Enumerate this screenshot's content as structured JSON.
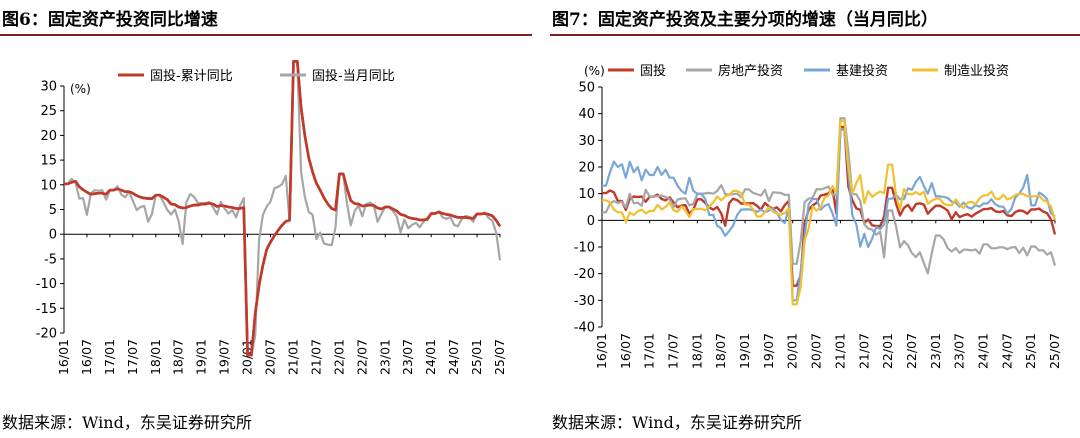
{
  "left": {
    "title": "图6：固定资产投资同比增速",
    "source": "数据来源：Wind，东吴证券研究所",
    "chart_data": {
      "type": "line",
      "title": "",
      "ylabel": "(%)",
      "xlabel": "",
      "ylim": [
        -20,
        30
      ],
      "yticks": [
        -20,
        -15,
        -10,
        -5,
        0,
        5,
        10,
        15,
        20,
        25,
        30
      ],
      "xticks": [
        "16/01",
        "16/07",
        "17/01",
        "17/07",
        "18/01",
        "18/07",
        "19/01",
        "19/07",
        "20/01",
        "20/07",
        "21/01",
        "21/07",
        "22/01",
        "22/07",
        "23/01",
        "23/07",
        "24/01",
        "24/07",
        "25/01",
        "25/07"
      ],
      "x_start": "2016-01",
      "legend": "top",
      "colors": {
        "series1": "#c0392b",
        "series2": "#a6a6a6"
      },
      "series": [
        {
          "name": "固投-累计同比",
          "values": [
            10.2,
            10.2,
            10.5,
            10.7,
            9.6,
            9.0,
            8.5,
            8.1,
            8.2,
            8.3,
            8.3,
            8.1,
            8.9,
            8.9,
            9.2,
            8.9,
            8.6,
            8.6,
            8.3,
            7.8,
            7.5,
            7.3,
            7.2,
            7.2,
            7.9,
            7.9,
            7.5,
            7.0,
            6.1,
            6.0,
            5.5,
            5.3,
            5.4,
            5.7,
            5.9,
            5.9,
            6.1,
            6.1,
            6.3,
            6.1,
            5.6,
            5.8,
            5.7,
            5.5,
            5.4,
            5.2,
            5.2,
            5.4,
            -24.5,
            -24.5,
            -16.1,
            -10.3,
            -6.3,
            -3.1,
            -1.6,
            -0.3,
            0.8,
            1.8,
            2.6,
            2.9,
            35.0,
            35.0,
            25.6,
            19.9,
            15.4,
            12.6,
            10.3,
            8.9,
            7.3,
            6.1,
            5.2,
            4.9,
            12.2,
            12.2,
            9.3,
            6.8,
            6.2,
            6.1,
            5.7,
            5.8,
            5.9,
            5.8,
            5.3,
            5.1,
            5.5,
            5.5,
            5.1,
            4.7,
            4.0,
            3.8,
            3.4,
            3.2,
            3.1,
            2.9,
            2.9,
            3.0,
            4.2,
            4.2,
            4.5,
            4.2,
            4.0,
            3.9,
            3.6,
            3.4,
            3.4,
            3.4,
            3.3,
            3.2,
            4.1,
            4.1,
            4.2,
            4.0,
            3.7,
            2.8,
            1.6
          ]
        },
        {
          "name": "固投-当月同比",
          "values": [
            10.2,
            10.2,
            11.2,
            10.5,
            7.2,
            7.3,
            3.9,
            8.2,
            8.9,
            8.8,
            8.9,
            7.0,
            8.9,
            8.9,
            9.7,
            8.0,
            7.5,
            8.6,
            6.8,
            4.9,
            5.5,
            5.7,
            2.5,
            4.1,
            7.9,
            7.9,
            6.5,
            4.9,
            4.0,
            5.0,
            2.6,
            -2.0,
            6.5,
            8.1,
            7.6,
            6.3,
            6.3,
            6.3,
            6.5,
            5.4,
            4.0,
            6.5,
            5.2,
            4.2,
            4.9,
            3.4,
            5.7,
            7.3,
            -24.5,
            -24.5,
            -20.5,
            -1.1,
            3.9,
            5.6,
            6.6,
            9.3,
            9.6,
            10.1,
            11.8,
            2.6,
            35.0,
            35.0,
            12.6,
            7.5,
            4.5,
            3.9,
            -1.0,
            0.3,
            -1.9,
            -2.1,
            -2.2,
            1.4,
            12.2,
            12.2,
            6.2,
            1.8,
            4.7,
            5.8,
            3.6,
            6.1,
            6.4,
            5.9,
            2.5,
            4.1,
            5.5,
            5.5,
            4.7,
            3.6,
            0.4,
            3.0,
            1.2,
            1.9,
            2.3,
            1.4,
            2.5,
            3.3,
            4.2,
            4.2,
            4.6,
            3.4,
            3.1,
            3.5,
            1.9,
            1.6,
            3.1,
            3.7,
            3.5,
            2.5,
            4.1,
            4.1,
            4.4,
            3.3,
            2.7,
            0.3,
            -5.3
          ]
        }
      ]
    }
  },
  "right": {
    "title": "图7：固定资产投资及主要分项的增速（当月同比）",
    "source": "数据来源：Wind，东吴证券研究所",
    "chart_data": {
      "type": "line",
      "title": "",
      "ylabel": "(%)",
      "xlabel": "",
      "ylim": [
        -40,
        50
      ],
      "yticks": [
        -40,
        -30,
        -20,
        -10,
        0,
        10,
        20,
        30,
        40,
        50
      ],
      "xticks": [
        "16/01",
        "16/07",
        "17/01",
        "17/07",
        "18/01",
        "18/07",
        "19/01",
        "19/07",
        "20/01",
        "20/07",
        "21/01",
        "21/07",
        "22/01",
        "22/07",
        "23/01",
        "23/07",
        "24/01",
        "24/07",
        "25/01",
        "25/07"
      ],
      "x_start": "2016-01",
      "legend": "top",
      "colors": {
        "fai": "#c0392b",
        "re": "#a6a6a6",
        "infra": "#7aa6d6",
        "mfg": "#f0c030"
      },
      "series": [
        {
          "name": "固投",
          "values": [
            10.2,
            10.2,
            11.2,
            10.5,
            7.2,
            7.3,
            3.9,
            8.2,
            8.9,
            8.8,
            8.9,
            7.0,
            8.9,
            8.9,
            9.7,
            8.0,
            7.5,
            8.6,
            6.8,
            4.9,
            5.5,
            5.7,
            2.5,
            4.1,
            7.9,
            7.9,
            6.5,
            4.9,
            4.0,
            5.0,
            2.6,
            -2.0,
            6.5,
            8.1,
            7.6,
            6.3,
            6.3,
            6.3,
            6.5,
            5.4,
            4.0,
            6.5,
            5.2,
            4.2,
            4.9,
            3.4,
            5.7,
            7.3,
            -24.5,
            -24.5,
            -20.5,
            -1.1,
            3.9,
            5.6,
            6.6,
            9.3,
            9.6,
            10.1,
            11.8,
            2.6,
            35.0,
            35.0,
            12.6,
            7.5,
            4.5,
            3.9,
            -1.0,
            0.3,
            -1.9,
            -2.1,
            -2.2,
            1.4,
            12.2,
            12.2,
            6.2,
            1.8,
            4.7,
            5.8,
            3.6,
            6.1,
            6.4,
            5.9,
            2.5,
            4.1,
            5.5,
            5.5,
            4.7,
            3.6,
            0.4,
            3.0,
            1.2,
            1.9,
            2.3,
            1.4,
            2.5,
            3.3,
            4.2,
            4.2,
            4.6,
            3.4,
            3.1,
            3.5,
            1.9,
            1.6,
            3.1,
            3.7,
            3.5,
            2.5,
            4.1,
            4.1,
            4.4,
            3.3,
            2.7,
            0.3,
            -5.3
          ]
        },
        {
          "name": "房地产投资",
          "values": [
            3.0,
            3.0,
            6.2,
            7.2,
            6.5,
            7.0,
            4.8,
            10.0,
            6.4,
            6.6,
            5.5,
            11.5,
            8.9,
            8.9,
            9.1,
            9.3,
            8.8,
            8.0,
            4.8,
            7.8,
            8.1,
            8.3,
            5.6,
            6.2,
            9.9,
            9.9,
            10.1,
            10.3,
            10.0,
            11.0,
            13.2,
            9.9,
            9.6,
            9.8,
            10.0,
            8.7,
            11.6,
            11.6,
            10.3,
            9.8,
            9.3,
            11.4,
            7.2,
            10.5,
            10.4,
            10.3,
            9.5,
            9.6,
            -16.3,
            -16.3,
            -7.7,
            7.0,
            8.1,
            8.5,
            11.7,
            11.6,
            12.0,
            12.7,
            9.7,
            9.3,
            38.3,
            38.3,
            25.6,
            9.8,
            9.8,
            7.2,
            -1.5,
            -3.1,
            -3.5,
            -5.4,
            -4.3,
            -13.9,
            3.7,
            3.7,
            -2.4,
            -10.1,
            -7.8,
            -9.4,
            -12.3,
            -13.8,
            -12.0,
            -16.0,
            -19.9,
            -12.2,
            -5.7,
            -5.7,
            -7.2,
            -10.5,
            -11.7,
            -10.4,
            -12.2,
            -11.0,
            -11.0,
            -11.3,
            -10.9,
            -12.5,
            -9.0,
            -9.0,
            -10.5,
            -10.5,
            -10.1,
            -10.1,
            -10.8,
            -10.2,
            -10.0,
            -12.3,
            -10.3,
            -13.1,
            -9.8,
            -9.8,
            -11.3,
            -11.2,
            -12.9,
            -12.0,
            -17.0
          ]
        },
        {
          "name": "基建投资",
          "values": [
            13.0,
            13.0,
            18.0,
            22.0,
            20.0,
            21.0,
            16.0,
            22.0,
            18.0,
            20.0,
            15.0,
            19.0,
            17.0,
            17.0,
            20.0,
            17.0,
            19.0,
            16.0,
            16.0,
            13.0,
            11.0,
            10.0,
            16.0,
            11.0,
            10.0,
            10.0,
            8.0,
            2.0,
            2.0,
            -2.0,
            -3.0,
            -5.8,
            -4.0,
            -2.0,
            2.0,
            4.0,
            4.1,
            4.1,
            3.8,
            3.2,
            4.0,
            3.1,
            3.6,
            4.5,
            2.8,
            0.2,
            -1.0,
            4.5,
            -30.0,
            -30.0,
            -19.0,
            -6.0,
            6.0,
            8.0,
            8.0,
            4.0,
            5.4,
            6.1,
            2.6,
            -2.0,
            34.0,
            34.0,
            18.0,
            1.9,
            -1.5,
            -9.9,
            -5.0,
            -10.0,
            -6.8,
            -2.5,
            -3.3,
            -1.5,
            8.1,
            8.1,
            9.6,
            7.9,
            8.0,
            12.0,
            11.5,
            14.5,
            16.3,
            12.8,
            10.0,
            14.0,
            9.0,
            9.0,
            8.8,
            8.4,
            7.0,
            6.6,
            5.1,
            6.7,
            4.9,
            4.4,
            5.7,
            5.1,
            6.3,
            6.3,
            7.9,
            6.0,
            5.2,
            5.1,
            2.6,
            4.2,
            8.6,
            10.0,
            12.3,
            17.0,
            5.6,
            5.6,
            10.4,
            9.5,
            7.9,
            2.6,
            1.4
          ]
        },
        {
          "name": "制造业投资",
          "values": [
            7.5,
            7.5,
            6.7,
            4.0,
            3.0,
            3.0,
            -0.6,
            2.9,
            2.0,
            3.4,
            4.0,
            2.6,
            3.5,
            3.5,
            5.8,
            4.1,
            5.0,
            6.7,
            3.8,
            3.2,
            5.2,
            3.7,
            1.2,
            4.2,
            4.3,
            4.3,
            3.8,
            5.2,
            6.8,
            8.9,
            7.5,
            9.0,
            9.6,
            11.0,
            11.0,
            10.2,
            5.9,
            5.9,
            4.2,
            1.4,
            1.4,
            3.0,
            4.9,
            3.3,
            2.5,
            2.1,
            2.7,
            4.5,
            -31.5,
            -31.5,
            -25.1,
            -7.5,
            -3.1,
            5.2,
            3.6,
            5.0,
            8.5,
            9.3,
            12.8,
            10.2,
            37.3,
            37.3,
            20.0,
            10.0,
            14.0,
            17.0,
            6.4,
            11.0,
            8.8,
            10.0,
            10.8,
            10.1,
            20.9,
            20.9,
            9.3,
            4.1,
            11.7,
            9.9,
            9.7,
            10.6,
            9.6,
            10.7,
            6.2,
            7.4,
            8.1,
            8.1,
            6.2,
            5.7,
            5.6,
            7.8,
            5.8,
            4.6,
            6.7,
            6.9,
            6.0,
            8.2,
            9.4,
            9.4,
            10.8,
            8.1,
            8.0,
            9.6,
            7.9,
            8.3,
            9.5,
            10.0,
            9.9,
            9.0,
            9.0,
            9.0,
            9.2,
            7.6,
            7.0,
            5.1,
            0.0
          ]
        }
      ]
    }
  }
}
